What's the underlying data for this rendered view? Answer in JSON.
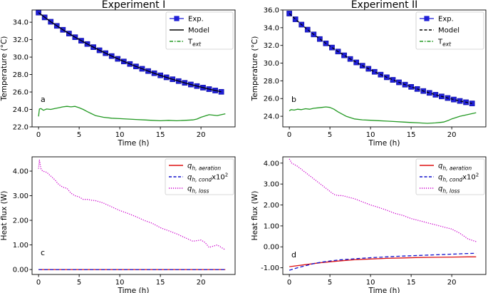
{
  "chart_data": [
    {
      "id": "a",
      "type": "line",
      "title": "Experiment I",
      "panel_label": "a",
      "xlabel": "Time (h)",
      "ylabel": "Temperature (°C)",
      "xlim": [
        -0.8,
        24.2
      ],
      "ylim": [
        22.0,
        35.4
      ],
      "xticks": [
        0,
        5,
        10,
        15,
        20
      ],
      "xtick_labels": [
        "0",
        "5",
        "10",
        "15",
        "20"
      ],
      "yticks": [
        22,
        24,
        26,
        28,
        30,
        32,
        34
      ],
      "ytick_labels": [
        "22.0",
        "24.0",
        "26.0",
        "28.0",
        "30.0",
        "32.0",
        "34.0"
      ],
      "legend": [
        {
          "label": "Exp.",
          "color": "#1f1fd6",
          "style": "square-marker"
        },
        {
          "label": "Model",
          "color": "#000000",
          "style": "solid"
        },
        {
          "label": "T",
          "sub": "ext",
          "color": "#229922",
          "style": "dashdot"
        }
      ],
      "series": [
        {
          "name": "Exp.",
          "kind": "markers",
          "color": "#1f1fd6",
          "x": [
            0,
            0.75,
            1.5,
            2.25,
            3,
            3.75,
            4.5,
            5.25,
            6,
            6.75,
            7.5,
            8.25,
            9,
            9.75,
            10.5,
            11.25,
            12,
            12.75,
            13.5,
            14.25,
            15,
            15.75,
            16.5,
            17.25,
            18,
            18.75,
            19.5,
            20.25,
            21,
            21.75,
            22.5
          ],
          "y": [
            35.1,
            34.55,
            34.05,
            33.58,
            33.13,
            32.7,
            32.28,
            31.88,
            31.5,
            31.14,
            30.78,
            30.45,
            30.12,
            29.8,
            29.5,
            29.21,
            28.93,
            28.66,
            28.4,
            28.15,
            27.91,
            27.68,
            27.46,
            27.25,
            27.05,
            26.86,
            26.68,
            26.5,
            26.33,
            26.17,
            26.02
          ]
        },
        {
          "name": "Model",
          "kind": "line",
          "color": "#000000",
          "dash": "",
          "x": [
            0,
            1.5,
            3,
            4.5,
            6,
            7.5,
            9,
            10.5,
            12,
            13.5,
            15,
            16.5,
            18,
            19.5,
            21,
            22.5
          ],
          "y": [
            35.1,
            34.05,
            33.13,
            32.28,
            31.5,
            30.78,
            30.12,
            29.5,
            28.93,
            28.4,
            27.91,
            27.46,
            27.05,
            26.68,
            26.33,
            26.02
          ]
        },
        {
          "name": "T_ext",
          "kind": "line",
          "color": "#229922",
          "dash": "",
          "x": [
            0,
            0.1,
            0.3,
            0.6,
            1,
            1.5,
            2,
            2.5,
            3,
            3.5,
            4,
            4.5,
            5,
            5.5,
            6,
            7,
            8,
            9,
            10,
            11,
            12,
            13,
            14,
            15,
            16,
            17,
            18,
            19,
            19.5,
            20,
            21,
            22,
            23
          ],
          "y": [
            23.2,
            24.05,
            24.1,
            23.9,
            24.05,
            24.0,
            24.1,
            24.2,
            24.3,
            24.35,
            24.3,
            24.35,
            24.2,
            24.0,
            23.75,
            23.3,
            23.1,
            23.0,
            22.95,
            22.9,
            22.85,
            22.8,
            22.75,
            22.7,
            22.75,
            22.7,
            22.75,
            22.8,
            22.9,
            23.1,
            23.4,
            23.3,
            23.5
          ]
        }
      ]
    },
    {
      "id": "b",
      "type": "line",
      "title": "Experiment II",
      "panel_label": "b",
      "xlabel": "Time (h)",
      "ylabel": "Temperature (°C)",
      "xlim": [
        -0.8,
        24.2
      ],
      "ylim": [
        22.8,
        36.0
      ],
      "xticks": [
        0,
        5,
        10,
        15,
        20
      ],
      "xtick_labels": [
        "0",
        "5",
        "10",
        "15",
        "20"
      ],
      "yticks": [
        24,
        26,
        28,
        30,
        32,
        34,
        36
      ],
      "ytick_labels": [
        "24.0",
        "26.0",
        "28.0",
        "30.0",
        "32.0",
        "34.0",
        "36.0"
      ],
      "legend": [
        {
          "label": "Exp.",
          "color": "#1f1fd6",
          "style": "square-marker"
        },
        {
          "label": "Model",
          "color": "#000000",
          "style": "dashed"
        },
        {
          "label": "T",
          "sub": "ext",
          "color": "#229922",
          "style": "dashdot"
        }
      ],
      "series": [
        {
          "name": "Exp.",
          "kind": "markers",
          "color": "#1f1fd6",
          "x": [
            0,
            0.75,
            1.5,
            2.25,
            3,
            3.75,
            4.5,
            5.25,
            6,
            6.75,
            7.5,
            8.25,
            9,
            9.75,
            10.5,
            11.25,
            12,
            12.75,
            13.5,
            14.25,
            15,
            15.75,
            16.5,
            17.25,
            18,
            18.75,
            19.5,
            20.25,
            21,
            21.75,
            22.5
          ],
          "y": [
            35.6,
            34.95,
            34.35,
            33.78,
            33.24,
            32.72,
            32.23,
            31.76,
            31.31,
            30.88,
            30.47,
            30.08,
            29.71,
            29.36,
            29.02,
            28.7,
            28.4,
            28.11,
            27.83,
            27.57,
            27.32,
            27.08,
            26.85,
            26.64,
            26.43,
            26.24,
            26.06,
            25.89,
            25.73,
            25.58,
            25.45
          ]
        },
        {
          "name": "Model",
          "kind": "line",
          "color": "#000000",
          "dash": "4,3",
          "x": [
            0,
            1.5,
            3,
            4.5,
            6,
            7.5,
            9,
            10.5,
            12,
            13.5,
            15,
            16.5,
            18,
            19.5,
            21,
            22.5
          ],
          "y": [
            35.6,
            34.35,
            33.24,
            32.23,
            31.31,
            30.47,
            29.71,
            29.02,
            28.4,
            27.83,
            27.32,
            26.85,
            26.43,
            26.06,
            25.73,
            25.45
          ]
        },
        {
          "name": "T_ext",
          "kind": "line",
          "color": "#229922",
          "dash": "",
          "x": [
            0,
            0.2,
            0.6,
            1,
            1.5,
            2,
            2.5,
            3,
            3.5,
            4,
            4.5,
            5,
            5.5,
            6,
            7,
            8,
            9,
            10,
            11,
            12,
            13,
            14,
            15,
            16,
            17,
            18,
            18.5,
            19,
            19.5,
            20,
            21,
            22,
            23
          ],
          "y": [
            24.6,
            24.75,
            24.7,
            24.8,
            24.75,
            24.85,
            24.8,
            24.9,
            24.95,
            25.0,
            25.05,
            25.0,
            24.8,
            24.5,
            24.0,
            23.7,
            23.6,
            23.55,
            23.5,
            23.45,
            23.4,
            23.35,
            23.3,
            23.25,
            23.2,
            23.25,
            23.3,
            23.35,
            23.5,
            23.7,
            24.0,
            24.2,
            24.4
          ]
        }
      ]
    },
    {
      "id": "c",
      "type": "line",
      "panel_label": "c",
      "xlabel": "Time (h)",
      "ylabel": "Heat flux (W)",
      "xlim": [
        -0.8,
        24.2
      ],
      "ylim": [
        -0.2,
        4.58
      ],
      "xticks": [
        0,
        5,
        10,
        15,
        20
      ],
      "xtick_labels": [
        "0",
        "5",
        "10",
        "15",
        "20"
      ],
      "yticks": [
        0,
        1,
        2,
        3,
        4
      ],
      "ytick_labels": [
        "0.00",
        "1.00",
        "2.00",
        "3.00",
        "4.00"
      ],
      "legend": [
        {
          "label": "q",
          "sub": "h, aeration",
          "sup": "",
          "color": "#dd1111",
          "style": "solid"
        },
        {
          "label": "q",
          "sub": "h, cond",
          "suffix": "x10",
          "sup": "2",
          "color": "#1111cc",
          "style": "dashed"
        },
        {
          "label": "q",
          "sub": "h, loss",
          "sup": "",
          "color": "#cc00cc",
          "style": "dotted"
        }
      ],
      "series": [
        {
          "name": "q_h,aeration",
          "kind": "line",
          "color": "#dd1111",
          "dash": "",
          "x": [
            0,
            23
          ],
          "y": [
            0.0,
            0.0
          ]
        },
        {
          "name": "q_h,cond x10^2",
          "kind": "line",
          "color": "#1111cc",
          "dash": "5,3",
          "x": [
            0,
            23
          ],
          "y": [
            0.0,
            0.0
          ]
        },
        {
          "name": "q_h,loss",
          "kind": "line",
          "color": "#cc00cc",
          "dash": "1.2,1.8",
          "x": [
            0,
            0.1,
            0.3,
            0.5,
            1,
            1.5,
            2,
            2.5,
            3,
            3.5,
            4,
            4.5,
            5,
            5.5,
            6,
            6.5,
            7,
            8,
            9,
            10,
            11,
            12,
            13,
            14,
            15,
            16,
            17,
            18,
            19,
            20,
            20.5,
            21,
            21.5,
            22,
            22.5,
            23
          ],
          "y": [
            4.1,
            4.45,
            4.1,
            4.0,
            3.95,
            3.8,
            3.65,
            3.45,
            3.35,
            3.3,
            3.1,
            3.0,
            2.95,
            2.85,
            2.85,
            2.82,
            2.8,
            2.7,
            2.55,
            2.4,
            2.28,
            2.15,
            2.0,
            1.88,
            1.7,
            1.58,
            1.45,
            1.3,
            1.15,
            1.2,
            1.1,
            0.9,
            0.95,
            1.0,
            0.9,
            0.8
          ]
        }
      ]
    },
    {
      "id": "d",
      "type": "line",
      "panel_label": "d",
      "xlabel": "Time (h)",
      "ylabel": "Heat flux (W)",
      "xlim": [
        -0.8,
        24.2
      ],
      "ylim": [
        -1.32,
        4.3
      ],
      "xticks": [
        0,
        5,
        10,
        15,
        20
      ],
      "xtick_labels": [
        "0",
        "5",
        "10",
        "15",
        "20"
      ],
      "yticks": [
        -1,
        0,
        1,
        2,
        3,
        4
      ],
      "ytick_labels": [
        "-1.00",
        "0.00",
        "1.00",
        "2.00",
        "3.00",
        "4.00"
      ],
      "legend": [
        {
          "label": "q",
          "sub": "h, aeration",
          "sup": "",
          "color": "#dd1111",
          "style": "solid"
        },
        {
          "label": "q",
          "sub": "h, cond",
          "suffix": "x10",
          "sup": "2",
          "color": "#1111cc",
          "style": "dashed"
        },
        {
          "label": "q",
          "sub": "h, loss",
          "sup": "",
          "color": "#cc00cc",
          "style": "dotted"
        }
      ],
      "series": [
        {
          "name": "q_h,aeration",
          "kind": "line",
          "color": "#dd1111",
          "dash": "",
          "x": [
            0,
            2,
            4,
            6,
            8,
            10,
            12,
            14,
            16,
            18,
            20,
            22,
            23
          ],
          "y": [
            -0.95,
            -0.85,
            -0.75,
            -0.68,
            -0.62,
            -0.58,
            -0.55,
            -0.53,
            -0.51,
            -0.5,
            -0.49,
            -0.48,
            -0.48
          ]
        },
        {
          "name": "q_h,cond x10^2",
          "kind": "line",
          "color": "#1111cc",
          "dash": "5,3",
          "x": [
            0,
            1,
            2,
            3,
            4,
            5,
            6,
            8,
            10,
            12,
            14,
            16,
            18,
            20,
            22,
            23
          ],
          "y": [
            -1.12,
            -1.0,
            -0.9,
            -0.8,
            -0.73,
            -0.68,
            -0.63,
            -0.57,
            -0.52,
            -0.48,
            -0.44,
            -0.41,
            -0.38,
            -0.35,
            -0.32,
            -0.31
          ]
        },
        {
          "name": "q_h,loss",
          "kind": "line",
          "color": "#cc00cc",
          "dash": "1.2,1.8",
          "x": [
            0,
            0.3,
            1,
            2,
            3,
            4,
            5,
            5.5,
            6,
            6.5,
            7,
            8,
            9,
            10,
            11,
            12,
            13,
            14,
            15,
            16,
            17,
            18,
            19,
            20,
            21,
            22,
            23
          ],
          "y": [
            4.2,
            4.0,
            3.85,
            3.55,
            3.25,
            2.95,
            2.65,
            2.5,
            2.45,
            2.45,
            2.4,
            2.3,
            2.15,
            2.0,
            1.88,
            1.75,
            1.6,
            1.5,
            1.35,
            1.25,
            1.15,
            1.05,
            0.95,
            0.85,
            0.65,
            0.38,
            0.25
          ]
        }
      ]
    }
  ]
}
